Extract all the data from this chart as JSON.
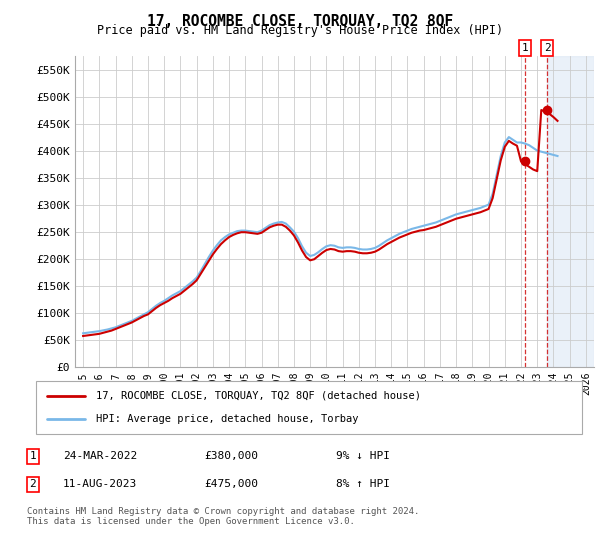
{
  "title": "17, ROCOMBE CLOSE, TORQUAY, TQ2 8QF",
  "subtitle": "Price paid vs. HM Land Registry's House Price Index (HPI)",
  "hpi_color": "#7ab8e8",
  "price_color": "#cc0000",
  "marker_color": "#cc0000",
  "bg_color": "#ffffff",
  "grid_color": "#cccccc",
  "shade_color": "#dde8f5",
  "sale1_date_num": 2022.23,
  "sale2_date_num": 2023.62,
  "sale1_price": 380000,
  "sale2_price": 475000,
  "ylim": [
    0,
    575000
  ],
  "xlim_start": 1994.5,
  "xlim_end": 2026.5,
  "yticks": [
    0,
    50000,
    100000,
    150000,
    200000,
    250000,
    300000,
    350000,
    400000,
    450000,
    500000,
    550000
  ],
  "ytick_labels": [
    "£0",
    "£50K",
    "£100K",
    "£150K",
    "£200K",
    "£250K",
    "£300K",
    "£350K",
    "£400K",
    "£450K",
    "£500K",
    "£550K"
  ],
  "xticks": [
    1995,
    1996,
    1997,
    1998,
    1999,
    2000,
    2001,
    2002,
    2003,
    2004,
    2005,
    2006,
    2007,
    2008,
    2009,
    2010,
    2011,
    2012,
    2013,
    2014,
    2015,
    2016,
    2017,
    2018,
    2019,
    2020,
    2021,
    2022,
    2023,
    2024,
    2025,
    2026
  ],
  "legend_label1": "17, ROCOMBE CLOSE, TORQUAY, TQ2 8QF (detached house)",
  "legend_label2": "HPI: Average price, detached house, Torbay",
  "table_row1": [
    "1",
    "24-MAR-2022",
    "£380,000",
    "9% ↓ HPI"
  ],
  "table_row2": [
    "2",
    "11-AUG-2023",
    "£475,000",
    "8% ↑ HPI"
  ],
  "footer": "Contains HM Land Registry data © Crown copyright and database right 2024.\nThis data is licensed under the Open Government Licence v3.0.",
  "hpi_data_x": [
    1995.0,
    1995.25,
    1995.5,
    1995.75,
    1996.0,
    1996.25,
    1996.5,
    1996.75,
    1997.0,
    1997.25,
    1997.5,
    1997.75,
    1998.0,
    1998.25,
    1998.5,
    1998.75,
    1999.0,
    1999.25,
    1999.5,
    1999.75,
    2000.0,
    2000.25,
    2000.5,
    2000.75,
    2001.0,
    2001.25,
    2001.5,
    2001.75,
    2002.0,
    2002.25,
    2002.5,
    2002.75,
    2003.0,
    2003.25,
    2003.5,
    2003.75,
    2004.0,
    2004.25,
    2004.5,
    2004.75,
    2005.0,
    2005.25,
    2005.5,
    2005.75,
    2006.0,
    2006.25,
    2006.5,
    2006.75,
    2007.0,
    2007.25,
    2007.5,
    2007.75,
    2008.0,
    2008.25,
    2008.5,
    2008.75,
    2009.0,
    2009.25,
    2009.5,
    2009.75,
    2010.0,
    2010.25,
    2010.5,
    2010.75,
    2011.0,
    2011.25,
    2011.5,
    2011.75,
    2012.0,
    2012.25,
    2012.5,
    2012.75,
    2013.0,
    2013.25,
    2013.5,
    2013.75,
    2014.0,
    2014.25,
    2014.5,
    2014.75,
    2015.0,
    2015.25,
    2015.5,
    2015.75,
    2016.0,
    2016.25,
    2016.5,
    2016.75,
    2017.0,
    2017.25,
    2017.5,
    2017.75,
    2018.0,
    2018.25,
    2018.5,
    2018.75,
    2019.0,
    2019.25,
    2019.5,
    2019.75,
    2020.0,
    2020.25,
    2020.5,
    2020.75,
    2021.0,
    2021.25,
    2021.5,
    2021.75,
    2022.0,
    2022.25,
    2022.5,
    2022.75,
    2023.0,
    2023.25,
    2023.5,
    2023.75,
    2024.0,
    2024.25
  ],
  "hpi_data_y": [
    62000,
    63000,
    64000,
    65000,
    66000,
    67500,
    69000,
    71000,
    73000,
    76000,
    79000,
    82000,
    85000,
    89000,
    93000,
    97000,
    101000,
    107000,
    113000,
    118000,
    122000,
    127000,
    132000,
    136000,
    140000,
    146000,
    152000,
    158000,
    165000,
    177000,
    190000,
    203000,
    215000,
    225000,
    234000,
    240000,
    245000,
    248000,
    251000,
    252000,
    252000,
    251000,
    250000,
    249000,
    252000,
    257000,
    262000,
    265000,
    267000,
    268000,
    265000,
    258000,
    250000,
    238000,
    223000,
    211000,
    205000,
    207000,
    212000,
    218000,
    223000,
    225000,
    224000,
    221000,
    220000,
    221000,
    221000,
    220000,
    218000,
    217000,
    217000,
    218000,
    220000,
    224000,
    229000,
    234000,
    238000,
    242000,
    246000,
    249000,
    252000,
    255000,
    257000,
    259000,
    261000,
    263000,
    265000,
    267000,
    270000,
    273000,
    276000,
    279000,
    282000,
    284000,
    286000,
    288000,
    290000,
    292000,
    294000,
    297000,
    300000,
    320000,
    355000,
    390000,
    415000,
    425000,
    420000,
    415000,
    415000,
    413000,
    410000,
    405000,
    400000,
    398000,
    396000,
    394000,
    392000,
    390000
  ],
  "price_data_x": [
    1995.0,
    1995.25,
    1995.5,
    1995.75,
    1996.0,
    1996.25,
    1996.5,
    1996.75,
    1997.0,
    1997.25,
    1997.5,
    1997.75,
    1998.0,
    1998.25,
    1998.5,
    1998.75,
    1999.0,
    1999.25,
    1999.5,
    1999.75,
    2000.0,
    2000.25,
    2000.5,
    2000.75,
    2001.0,
    2001.25,
    2001.5,
    2001.75,
    2002.0,
    2002.25,
    2002.5,
    2002.75,
    2003.0,
    2003.25,
    2003.5,
    2003.75,
    2004.0,
    2004.25,
    2004.5,
    2004.75,
    2005.0,
    2005.25,
    2005.5,
    2005.75,
    2006.0,
    2006.25,
    2006.5,
    2006.75,
    2007.0,
    2007.25,
    2007.5,
    2007.75,
    2008.0,
    2008.25,
    2008.5,
    2008.75,
    2009.0,
    2009.25,
    2009.5,
    2009.75,
    2010.0,
    2010.25,
    2010.5,
    2010.75,
    2011.0,
    2011.25,
    2011.5,
    2011.75,
    2012.0,
    2012.25,
    2012.5,
    2012.75,
    2013.0,
    2013.25,
    2013.5,
    2013.75,
    2014.0,
    2014.25,
    2014.5,
    2014.75,
    2015.0,
    2015.25,
    2015.5,
    2015.75,
    2016.0,
    2016.25,
    2016.5,
    2016.75,
    2017.0,
    2017.25,
    2017.5,
    2017.75,
    2018.0,
    2018.25,
    2018.5,
    2018.75,
    2019.0,
    2019.25,
    2019.5,
    2019.75,
    2020.0,
    2020.25,
    2020.5,
    2020.75,
    2021.0,
    2021.25,
    2021.5,
    2021.75,
    2022.0,
    2022.25,
    2022.5,
    2022.75,
    2023.0,
    2023.25,
    2023.5,
    2023.75,
    2024.0,
    2024.25
  ],
  "price_data_y": [
    57000,
    58000,
    59000,
    60000,
    61000,
    63000,
    65000,
    67000,
    70000,
    73000,
    76000,
    79000,
    82000,
    86000,
    90000,
    94000,
    97000,
    103000,
    109000,
    114000,
    118000,
    122000,
    127000,
    131000,
    135000,
    141000,
    147000,
    153000,
    160000,
    172000,
    184000,
    196000,
    208000,
    218000,
    227000,
    234000,
    240000,
    244000,
    247000,
    249000,
    249000,
    248000,
    247000,
    246000,
    248000,
    253000,
    258000,
    261000,
    263000,
    263000,
    259000,
    252000,
    243000,
    230000,
    215000,
    203000,
    197000,
    199000,
    205000,
    211000,
    216000,
    218000,
    217000,
    214000,
    213000,
    214000,
    214000,
    213000,
    211000,
    210000,
    210000,
    211000,
    213000,
    217000,
    222000,
    227000,
    231000,
    235000,
    239000,
    242000,
    245000,
    248000,
    250000,
    252000,
    253000,
    255000,
    257000,
    259000,
    262000,
    265000,
    268000,
    271000,
    274000,
    276000,
    278000,
    280000,
    282000,
    284000,
    286000,
    289000,
    292000,
    312000,
    347000,
    382000,
    407000,
    418000,
    413000,
    409000,
    380000,
    375000,
    370000,
    365000,
    362000,
    475000,
    472000,
    468000,
    462000,
    455000
  ]
}
